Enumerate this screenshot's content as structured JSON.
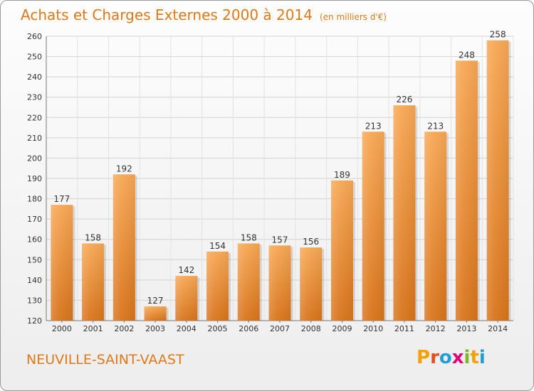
{
  "title": "Achats et Charges Externes 2000 à 2014",
  "subtitle": "(en milliers d'€)",
  "commune": "NEUVILLE-SAINT-VAAST",
  "logo_text": "Proxiti",
  "colors": {
    "bar_top": "#f7a854",
    "bar_bottom": "#d8741c",
    "title": "#e07818",
    "grid": "#d2d2d2"
  },
  "chart_data": {
    "type": "bar",
    "categories": [
      "2000",
      "2001",
      "2002",
      "2003",
      "2004",
      "2005",
      "2006",
      "2007",
      "2008",
      "2009",
      "2010",
      "2011",
      "2012",
      "2013",
      "2014"
    ],
    "values": [
      177,
      158,
      192,
      127,
      142,
      154,
      158,
      157,
      156,
      189,
      213,
      226,
      213,
      248,
      258
    ],
    "title": "Achats et Charges Externes 2000 à 2014",
    "ylim": [
      120,
      260
    ],
    "yticks": [
      120,
      130,
      140,
      150,
      160,
      170,
      180,
      190,
      200,
      210,
      220,
      230,
      240,
      250,
      260
    ],
    "grid": true,
    "data_labels": true
  }
}
